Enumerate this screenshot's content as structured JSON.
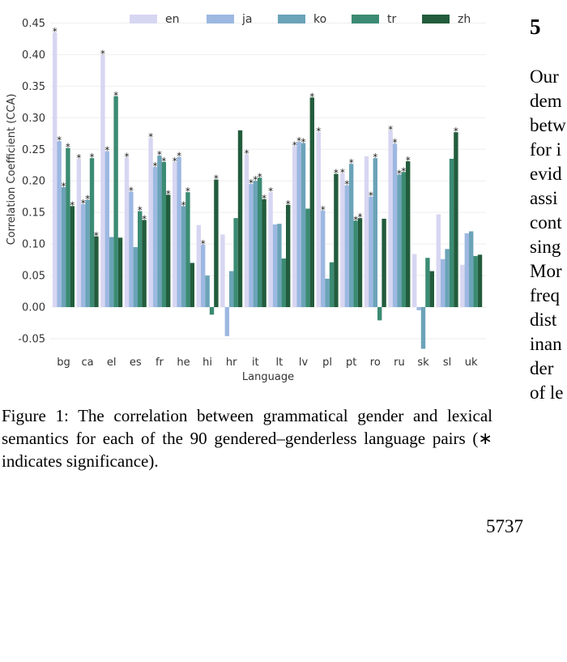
{
  "chart_data": {
    "type": "bar",
    "ylabel": "Correlation Coefficient (CCA)",
    "xlabel": "Language",
    "ylim": [
      -0.07,
      0.46
    ],
    "yticks": [
      "-0.05",
      "0.00",
      "0.05",
      "0.10",
      "0.15",
      "0.20",
      "0.25",
      "0.30",
      "0.35",
      "0.40",
      "0.45"
    ],
    "legend_position": "top",
    "categories": [
      "bg",
      "ca",
      "el",
      "es",
      "fr",
      "he",
      "hi",
      "hr",
      "it",
      "lt",
      "lv",
      "pl",
      "pt",
      "ro",
      "ru",
      "sk",
      "sl",
      "uk"
    ],
    "series": [
      {
        "name": "en",
        "color": "#d7d6f2",
        "values": [
          0.435,
          0.235,
          0.4,
          0.237,
          0.268,
          0.23,
          0.13,
          0.115,
          0.242,
          0.182,
          0.255,
          0.277,
          0.212,
          0.239,
          0.28,
          0.084,
          0.147,
          0.067
        ],
        "significant": [
          true,
          true,
          true,
          true,
          true,
          true,
          false,
          false,
          true,
          true,
          true,
          true,
          true,
          false,
          true,
          false,
          false,
          false
        ]
      },
      {
        "name": "ja",
        "color": "#9db8e1",
        "values": [
          0.263,
          0.163,
          0.247,
          0.183,
          0.222,
          0.238,
          0.099,
          -0.046,
          0.195,
          0.131,
          0.262,
          0.153,
          0.193,
          0.175,
          0.259,
          -0.005,
          0.076,
          0.117
        ],
        "significant": [
          true,
          true,
          true,
          true,
          true,
          true,
          true,
          false,
          true,
          false,
          true,
          true,
          true,
          true,
          true,
          false,
          false,
          false
        ]
      },
      {
        "name": "ko",
        "color": "#6ba3b8",
        "values": [
          0.19,
          0.17,
          0.111,
          0.095,
          0.24,
          0.16,
          0.05,
          0.057,
          0.2,
          0.132,
          0.26,
          0.045,
          0.227,
          0.236,
          0.21,
          -0.066,
          0.092,
          0.12
        ],
        "significant": [
          true,
          true,
          false,
          false,
          true,
          true,
          false,
          false,
          true,
          false,
          true,
          false,
          true,
          true,
          true,
          false,
          false,
          false
        ]
      },
      {
        "name": "tr",
        "color": "#3b8b73",
        "values": [
          0.252,
          0.236,
          0.334,
          0.152,
          0.23,
          0.182,
          -0.012,
          0.141,
          0.205,
          0.077,
          0.156,
          0.071,
          0.137,
          -0.021,
          0.214,
          0.078,
          0.235,
          0.081
        ],
        "significant": [
          true,
          true,
          true,
          true,
          true,
          true,
          false,
          false,
          true,
          false,
          false,
          false,
          true,
          false,
          true,
          false,
          false,
          false
        ]
      },
      {
        "name": "zh",
        "color": "#225c3c",
        "values": [
          0.16,
          0.112,
          0.11,
          0.138,
          0.178,
          0.07,
          0.202,
          0.28,
          0.171,
          0.162,
          0.332,
          0.211,
          0.141,
          0.14,
          0.231,
          0.057,
          0.277,
          0.083
        ],
        "significant": [
          true,
          true,
          false,
          true,
          true,
          false,
          true,
          false,
          true,
          true,
          true,
          true,
          true,
          false,
          true,
          false,
          true,
          false
        ]
      }
    ]
  },
  "caption": "Figure 1: The correlation between grammatical gender and lexical semantics for each of the 90 gendered–genderless language pairs (∗ indicates significance).",
  "significance_marker": "*",
  "section_number": "5",
  "right_column_lines": [
    "Our",
    "dem",
    "betw",
    "for i",
    "evid",
    "assi",
    "cont",
    "sing",
    "Mor",
    "freq",
    "dist",
    "inan",
    "der",
    "of le"
  ],
  "page_number": "5737"
}
